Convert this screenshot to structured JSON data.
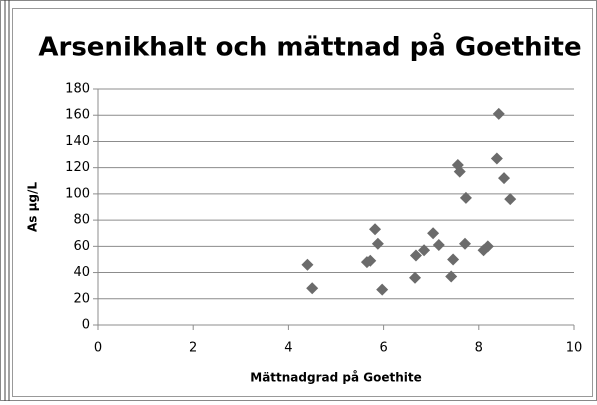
{
  "chart_data": {
    "type": "scatter",
    "title": "Arsenikhalt och mättnad på Goethite",
    "x_label": "Mättnadgrad på Goethite",
    "y_label": "As µg/L",
    "series": [
      {
        "name": "As µg/L",
        "color": "#6b6b6b",
        "x": [
          4.4,
          4.5,
          5.65,
          5.72,
          5.82,
          5.88,
          5.97,
          6.66,
          6.68,
          6.85,
          7.04,
          7.16,
          7.42,
          7.46,
          7.56,
          7.6,
          7.73,
          7.71,
          8.1,
          8.19,
          8.38,
          8.42,
          8.53,
          8.66
        ],
        "values": [
          46,
          28,
          48,
          49,
          73,
          62,
          27,
          36,
          53,
          57,
          70,
          61,
          37,
          50,
          122,
          117,
          97,
          62,
          57,
          60,
          127,
          161,
          112,
          96
        ]
      }
    ],
    "xlim": [
      0,
      10
    ],
    "xticks": [
      0,
      2,
      4,
      6,
      8,
      10
    ],
    "ylim": [
      0,
      180
    ],
    "yticks": [
      0,
      20,
      40,
      60,
      80,
      100,
      120,
      140,
      160,
      180
    ],
    "grid": true
  }
}
